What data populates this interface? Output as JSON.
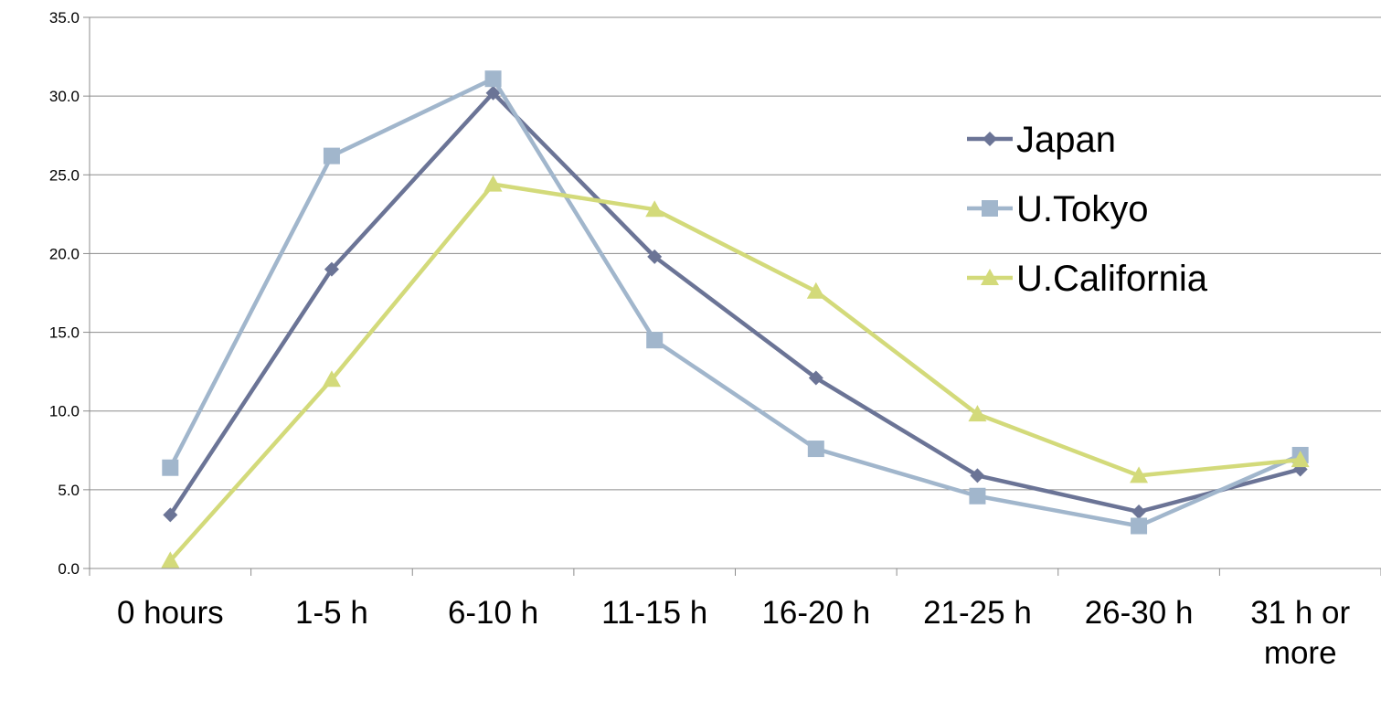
{
  "chart_data": {
    "type": "line",
    "categories": [
      "0 hours",
      "1-5 h",
      "6-10 h",
      "11-15 h",
      "16-20 h",
      "21-25 h",
      "26-30 h",
      "31 h or more"
    ],
    "category_lines": [
      [
        "0 hours"
      ],
      [
        "1-5 h"
      ],
      [
        "6-10 h"
      ],
      [
        "11-15 h"
      ],
      [
        "16-20 h"
      ],
      [
        "21-25 h"
      ],
      [
        "26-30 h"
      ],
      [
        "31 h or",
        "more"
      ]
    ],
    "series": [
      {
        "name": "Japan",
        "values": [
          3.4,
          19.0,
          30.2,
          19.8,
          12.1,
          5.9,
          3.6,
          6.3
        ],
        "color": "#6B7496",
        "marker": "diamond"
      },
      {
        "name": "U.Tokyo",
        "values": [
          6.4,
          26.2,
          31.1,
          14.5,
          7.6,
          4.6,
          2.7,
          7.2
        ],
        "color": "#A1B6CC",
        "marker": "square"
      },
      {
        "name": "U.California",
        "values": [
          0.5,
          12.0,
          24.4,
          22.8,
          17.6,
          9.8,
          5.9,
          6.9
        ],
        "color": "#D3DA7A",
        "marker": "triangle"
      }
    ],
    "ylim": [
      0,
      35
    ],
    "yticks": [
      "0.0",
      "5.0",
      "10.0",
      "15.0",
      "20.0",
      "25.0",
      "30.0",
      "35.0"
    ],
    "title": "",
    "xlabel": "",
    "ylabel": "",
    "grid": "horizontal",
    "legend_position": "right"
  }
}
